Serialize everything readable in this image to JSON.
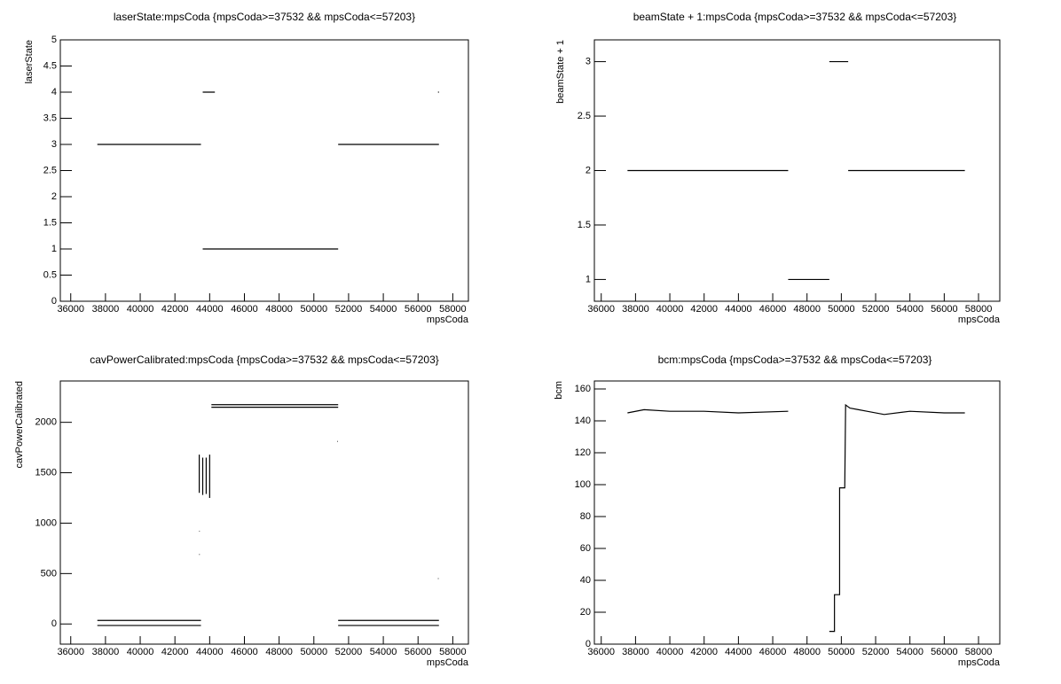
{
  "chart_data": [
    {
      "type": "line",
      "title": "laserState:mpsCoda {mpsCoda>=37532 && mpsCoda<=57203}",
      "xlabel": "mpsCoda",
      "ylabel": "laserState",
      "xlim": [
        35400,
        58900
      ],
      "ylim": [
        0,
        5
      ],
      "xticks": [
        36000,
        38000,
        40000,
        42000,
        44000,
        46000,
        48000,
        50000,
        52000,
        54000,
        56000,
        58000
      ],
      "yticks": [
        0,
        0.5,
        1,
        1.5,
        2,
        2.5,
        3,
        3.5,
        4,
        4.5,
        5
      ],
      "color": "#000000",
      "x": [
        37532,
        43500,
        null,
        43600,
        44300,
        null,
        43600,
        51400,
        null,
        51400,
        57203,
        null,
        57150,
        57203
      ],
      "values": [
        3,
        3,
        null,
        4,
        4,
        null,
        1,
        1,
        null,
        3,
        3,
        null,
        4,
        4
      ]
    },
    {
      "type": "line",
      "title": "beamState + 1:mpsCoda {mpsCoda>=37532 && mpsCoda<=57203}",
      "xlabel": "mpsCoda",
      "ylabel": "beamState + 1",
      "xlim": [
        35600,
        59240
      ],
      "ylim": [
        0.8,
        3.2
      ],
      "xticks": [
        36000,
        38000,
        40000,
        42000,
        44000,
        46000,
        48000,
        50000,
        52000,
        54000,
        56000,
        58000
      ],
      "yticks": [
        1,
        1.5,
        2,
        2.5,
        3
      ],
      "color": "#000000",
      "x": [
        37532,
        46900,
        null,
        46900,
        49300,
        null,
        49300,
        50400,
        null,
        50400,
        57203
      ],
      "values": [
        2,
        2,
        null,
        1,
        1,
        null,
        3,
        3,
        null,
        2,
        2
      ]
    },
    {
      "type": "line",
      "title": "cavPowerCalibrated:mpsCoda {mpsCoda>=37532 && mpsCoda<=57203}",
      "xlabel": "mpsCoda",
      "ylabel": "cavPowerCalibrated",
      "xlim": [
        35400,
        58900
      ],
      "ylim": [
        -200,
        2410
      ],
      "xticks": [
        36000,
        38000,
        40000,
        42000,
        44000,
        46000,
        48000,
        50000,
        52000,
        54000,
        56000,
        58000
      ],
      "yticks": [
        0,
        500,
        1000,
        1500,
        2000
      ],
      "color": "#000000",
      "x": [
        37532,
        43500,
        null,
        37532,
        43500,
        null,
        43400,
        43400,
        null,
        43600,
        43600,
        null,
        43800,
        43800,
        null,
        44000,
        44000,
        null,
        44100,
        51400,
        null,
        44100,
        51400,
        null,
        51400,
        57203,
        null,
        51400,
        57203,
        null,
        43400,
        43430,
        null,
        43400,
        43430,
        null,
        51350,
        51380,
        null,
        57150,
        57180
      ],
      "values": [
        35,
        35,
        null,
        -15,
        -15,
        null,
        1300,
        1680,
        null,
        1280,
        1650,
        null,
        1290,
        1650,
        null,
        1250,
        1680,
        null,
        2150,
        2150,
        null,
        2175,
        2175,
        null,
        35,
        35,
        null,
        -15,
        -15,
        null,
        920,
        920,
        null,
        690,
        690,
        null,
        1810,
        1810,
        null,
        450,
        450
      ]
    },
    {
      "type": "line",
      "title": "bcm:mpsCoda {mpsCoda>=37532 && mpsCoda<=57203}",
      "xlabel": "mpsCoda",
      "ylabel": "bcm",
      "xlim": [
        35600,
        59240
      ],
      "ylim": [
        0,
        165
      ],
      "xticks": [
        36000,
        38000,
        40000,
        42000,
        44000,
        46000,
        48000,
        50000,
        52000,
        54000,
        56000,
        58000
      ],
      "yticks": [
        0,
        20,
        40,
        60,
        80,
        100,
        120,
        140,
        160
      ],
      "color": "#000000",
      "x": [
        37532,
        38500,
        40000,
        42000,
        44000,
        46900,
        null,
        49300,
        49600,
        49600,
        49900,
        49900,
        50200,
        50250,
        50500,
        51000,
        51500,
        52500,
        54000,
        56000,
        57203
      ],
      "values": [
        145,
        147,
        146,
        146,
        145,
        146,
        null,
        8,
        8,
        31,
        31,
        98,
        98,
        150,
        148,
        147,
        146,
        144,
        146,
        145,
        145
      ]
    }
  ]
}
